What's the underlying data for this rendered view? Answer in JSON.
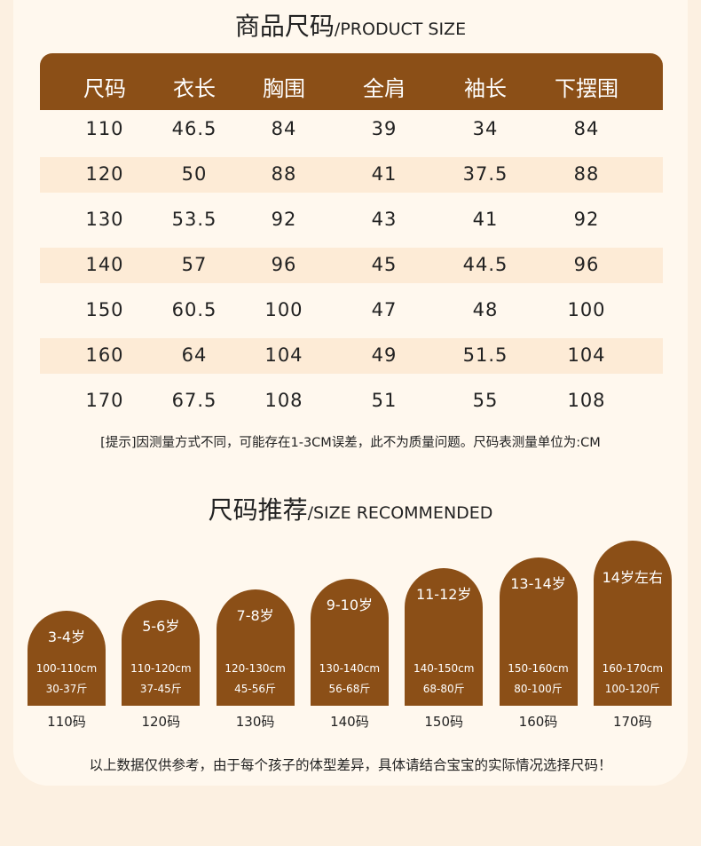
{
  "header": {
    "title": "商品尺码",
    "subtitle": "/PRODUCT SIZE"
  },
  "table": {
    "columns": [
      "尺码",
      "衣长",
      "胸围",
      "全肩",
      "袖长",
      "下摆围"
    ],
    "rows": [
      [
        "110",
        "46.5",
        "84",
        "39",
        "34",
        "84"
      ],
      [
        "120",
        "50",
        "88",
        "41",
        "37.5",
        "88"
      ],
      [
        "130",
        "53.5",
        "92",
        "43",
        "41",
        "92"
      ],
      [
        "140",
        "57",
        "96",
        "45",
        "44.5",
        "96"
      ],
      [
        "150",
        "60.5",
        "100",
        "47",
        "48",
        "100"
      ],
      [
        "160",
        "64",
        "104",
        "49",
        "51.5",
        "104"
      ],
      [
        "170",
        "67.5",
        "108",
        "51",
        "55",
        "108"
      ]
    ]
  },
  "note": "[提示]因测量方式不同，可能存在1-3CM误差，此不为质量问题。尺码表测量单位为:CM",
  "recommend": {
    "title": "尺码推荐",
    "subtitle": "/SIZE RECOMMENDED",
    "items": [
      {
        "age": "3-4岁",
        "height": "100-110cm",
        "weight": "30-37斤",
        "size": "110码"
      },
      {
        "age": "5-6岁",
        "height": "110-120cm",
        "weight": "37-45斤",
        "size": "120码"
      },
      {
        "age": "7-8岁",
        "height": "120-130cm",
        "weight": "45-56斤",
        "size": "130码"
      },
      {
        "age": "9-10岁",
        "height": "130-140cm",
        "weight": "56-68斤",
        "size": "140码"
      },
      {
        "age": "11-12岁",
        "height": "140-150cm",
        "weight": "68-80斤",
        "size": "150码"
      },
      {
        "age": "13-14岁",
        "height": "150-160cm",
        "weight": "80-100斤",
        "size": "160码"
      },
      {
        "age": "14岁左右",
        "height": "160-170cm",
        "weight": "100-120斤",
        "size": "170码"
      }
    ]
  },
  "footer": "以上数据仅供参考，由于每个孩子的体型差异，具体请结合宝宝的实际情况选择尺码！"
}
